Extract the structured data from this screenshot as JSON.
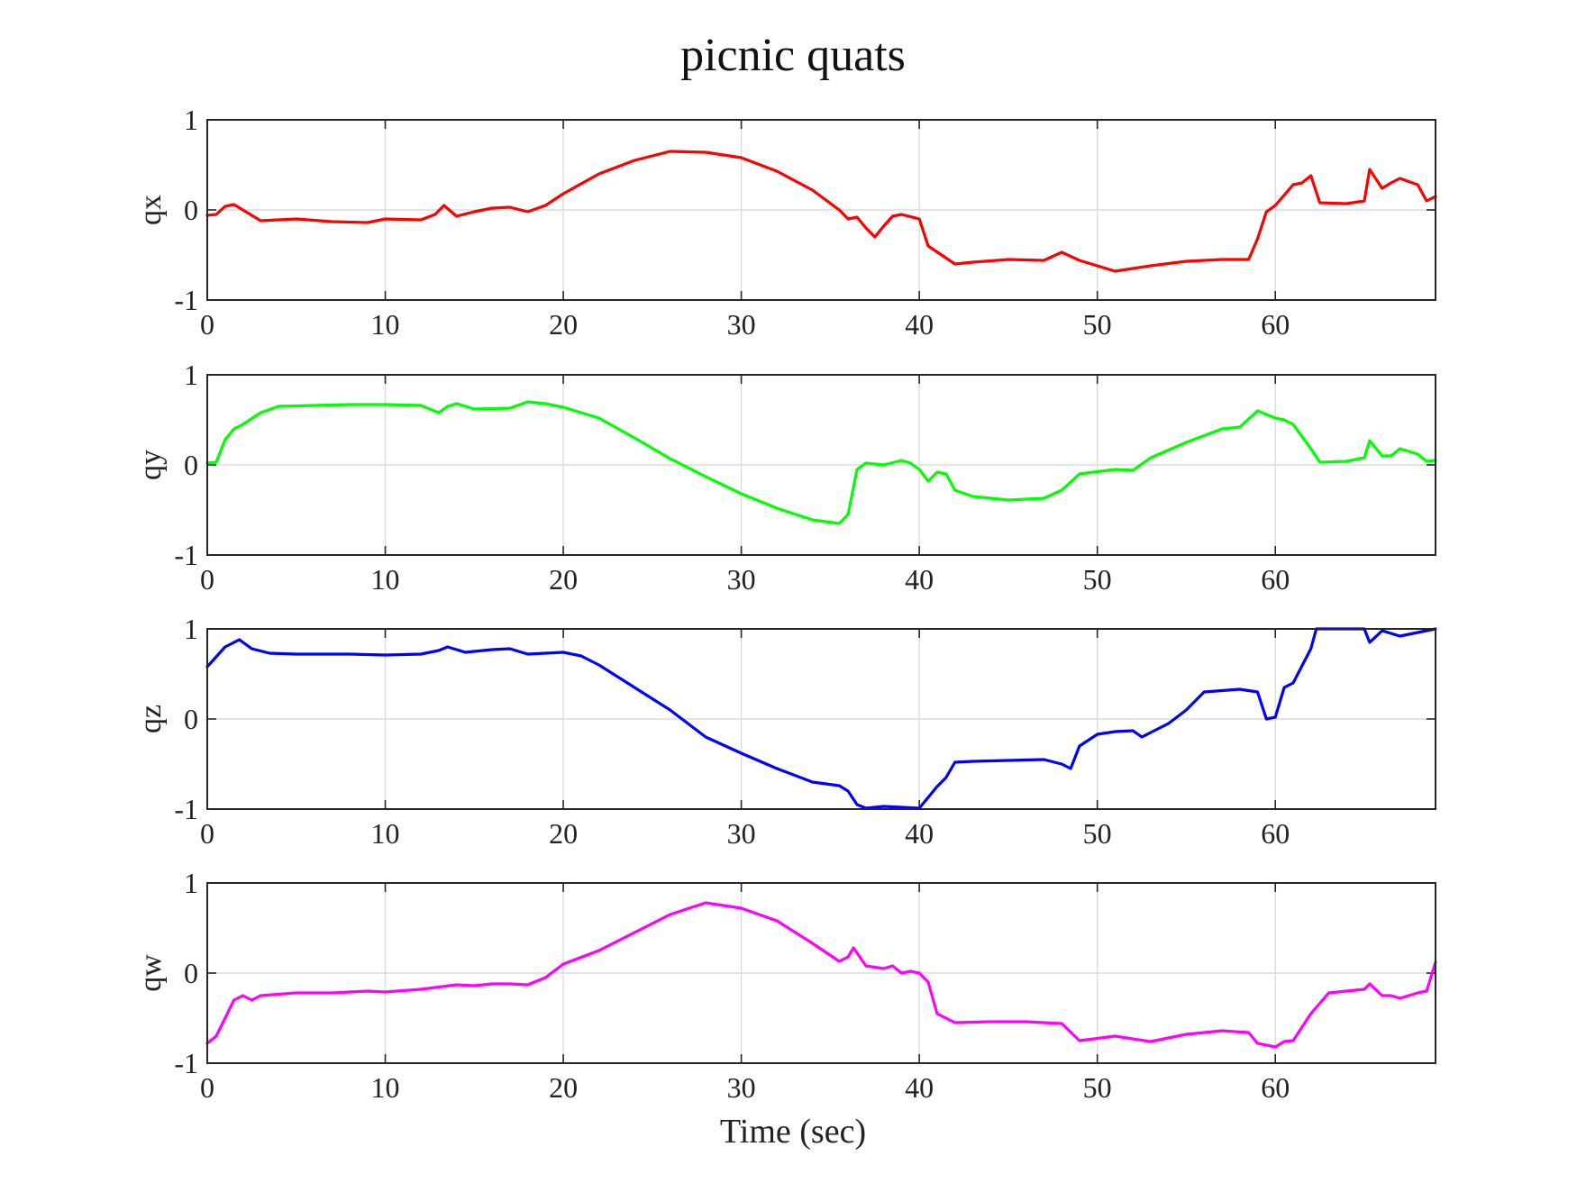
{
  "chart_data": {
    "title": "picnic quats",
    "xlabel": "Time (sec)",
    "type": "line",
    "grid": true,
    "xlim": [
      0,
      69
    ],
    "x_ticks": [
      0,
      10,
      20,
      30,
      40,
      50,
      60
    ],
    "subplots": [
      {
        "ylabel": "qx",
        "ylim": [
          -1,
          1
        ],
        "y_ticks": [
          -1,
          0,
          1
        ],
        "color": "#ff0000",
        "x": [
          0,
          0.5,
          1,
          1.5,
          2,
          3,
          5,
          7,
          9,
          10,
          12,
          12.8,
          13.3,
          14,
          15,
          16,
          17,
          18,
          19,
          20,
          22,
          24,
          26,
          28,
          30,
          32,
          34,
          35.5,
          36,
          36.5,
          37,
          37.5,
          38,
          38.5,
          39,
          40,
          40.5,
          42,
          43,
          45,
          47,
          48,
          49,
          51,
          53,
          55,
          57,
          58.5,
          59,
          59.5,
          60,
          61,
          61.5,
          62,
          62.5,
          64,
          65,
          65.3,
          66,
          66.5,
          67,
          68,
          68.5,
          69
        ],
        "y": [
          -0.06,
          -0.05,
          0.04,
          0.06,
          0.0,
          -0.12,
          -0.1,
          -0.13,
          -0.14,
          -0.1,
          -0.11,
          -0.05,
          0.05,
          -0.07,
          -0.02,
          0.02,
          0.03,
          -0.02,
          0.05,
          0.18,
          0.4,
          0.55,
          0.65,
          0.64,
          0.58,
          0.43,
          0.22,
          0.0,
          -0.1,
          -0.08,
          -0.2,
          -0.3,
          -0.18,
          -0.07,
          -0.05,
          -0.1,
          -0.4,
          -0.6,
          -0.58,
          -0.55,
          -0.56,
          -0.47,
          -0.56,
          -0.68,
          -0.62,
          -0.57,
          -0.55,
          -0.55,
          -0.32,
          -0.02,
          0.05,
          0.28,
          0.3,
          0.38,
          0.08,
          0.07,
          0.1,
          0.45,
          0.24,
          0.3,
          0.35,
          0.28,
          0.1,
          0.15
        ]
      },
      {
        "ylabel": "qy",
        "ylim": [
          -1,
          1
        ],
        "y_ticks": [
          -1,
          0,
          1
        ],
        "color": "#00ff00",
        "x": [
          0,
          0.5,
          1,
          1.5,
          2,
          3,
          4,
          6,
          8,
          10,
          12,
          13,
          13.5,
          14,
          15,
          17,
          18,
          19,
          20,
          22,
          24,
          26,
          28,
          30,
          32,
          34,
          35.5,
          36,
          36.5,
          37,
          38,
          39,
          39.5,
          40,
          40.5,
          41,
          41.5,
          42,
          43,
          45,
          47,
          48,
          49,
          51,
          52,
          53,
          55,
          57,
          58,
          59,
          60,
          60.5,
          61,
          62,
          62.5,
          64,
          65,
          65.3,
          66,
          66.5,
          67,
          68,
          68.5,
          69
        ],
        "y": [
          0.02,
          0.03,
          0.28,
          0.4,
          0.45,
          0.58,
          0.65,
          0.66,
          0.67,
          0.67,
          0.66,
          0.58,
          0.65,
          0.68,
          0.62,
          0.63,
          0.7,
          0.68,
          0.64,
          0.52,
          0.3,
          0.07,
          -0.13,
          -0.32,
          -0.48,
          -0.61,
          -0.65,
          -0.55,
          -0.05,
          0.02,
          0.0,
          0.05,
          0.02,
          -0.05,
          -0.18,
          -0.08,
          -0.1,
          -0.28,
          -0.35,
          -0.39,
          -0.37,
          -0.28,
          -0.1,
          -0.05,
          -0.06,
          0.08,
          0.25,
          0.4,
          0.42,
          0.6,
          0.52,
          0.5,
          0.45,
          0.18,
          0.03,
          0.04,
          0.08,
          0.27,
          0.1,
          0.1,
          0.18,
          0.12,
          0.04,
          0.05
        ]
      },
      {
        "ylabel": "qz",
        "ylim": [
          -1,
          1
        ],
        "y_ticks": [
          -1,
          0,
          1
        ],
        "color": "#0000ff",
        "x": [
          0,
          1,
          1.8,
          2.5,
          3.5,
          5,
          8,
          10,
          12,
          13,
          13.5,
          14.5,
          16,
          17,
          18,
          20,
          21,
          22,
          24,
          26,
          28,
          30,
          32,
          34,
          35.5,
          36,
          36.5,
          37,
          38,
          39,
          40,
          41,
          41.5,
          42,
          43,
          45,
          47,
          48,
          48.5,
          49,
          50,
          51,
          52,
          52.5,
          53,
          54,
          55,
          56,
          58,
          59,
          59.5,
          60,
          60.5,
          61,
          62,
          62.3,
          64,
          65,
          65.3,
          66,
          67,
          68,
          69
        ],
        "y": [
          0.58,
          0.8,
          0.88,
          0.78,
          0.73,
          0.72,
          0.72,
          0.71,
          0.72,
          0.76,
          0.8,
          0.74,
          0.77,
          0.78,
          0.72,
          0.74,
          0.7,
          0.6,
          0.35,
          0.1,
          -0.2,
          -0.38,
          -0.55,
          -0.7,
          -0.74,
          -0.8,
          -0.95,
          -0.99,
          -0.97,
          -0.98,
          -0.99,
          -0.75,
          -0.65,
          -0.48,
          -0.47,
          -0.46,
          -0.45,
          -0.5,
          -0.55,
          -0.3,
          -0.17,
          -0.14,
          -0.13,
          -0.2,
          -0.15,
          -0.05,
          0.1,
          0.3,
          0.33,
          0.3,
          0.0,
          0.02,
          0.35,
          0.4,
          0.78,
          1.0,
          1.0,
          1.0,
          0.85,
          0.98,
          0.92,
          0.96,
          1.0
        ]
      },
      {
        "ylabel": "qw",
        "ylim": [
          -1,
          1
        ],
        "y_ticks": [
          -1,
          0,
          1
        ],
        "color": "#ff00ff",
        "x": [
          0,
          0.5,
          1,
          1.5,
          2,
          2.5,
          3,
          5,
          7,
          9,
          10,
          12,
          14,
          15,
          16,
          17,
          18,
          19,
          20,
          22,
          24,
          26,
          28,
          30,
          32,
          34,
          35.5,
          36,
          36.3,
          37,
          38,
          38.5,
          39,
          39.5,
          40,
          40.5,
          41,
          41.5,
          42,
          44,
          46,
          48,
          49,
          51,
          53,
          55,
          57,
          58.5,
          59,
          60,
          60.5,
          61,
          62,
          63,
          64,
          65,
          65.3,
          66,
          66.5,
          67,
          68,
          68.5,
          69
        ],
        "y": [
          -0.78,
          -0.7,
          -0.5,
          -0.3,
          -0.25,
          -0.3,
          -0.25,
          -0.22,
          -0.22,
          -0.2,
          -0.21,
          -0.18,
          -0.13,
          -0.14,
          -0.12,
          -0.12,
          -0.13,
          -0.05,
          0.1,
          0.25,
          0.45,
          0.65,
          0.78,
          0.72,
          0.58,
          0.33,
          0.13,
          0.18,
          0.28,
          0.08,
          0.05,
          0.08,
          0.0,
          0.02,
          0.0,
          -0.1,
          -0.45,
          -0.5,
          -0.55,
          -0.54,
          -0.54,
          -0.56,
          -0.75,
          -0.7,
          -0.76,
          -0.68,
          -0.64,
          -0.66,
          -0.78,
          -0.82,
          -0.76,
          -0.75,
          -0.45,
          -0.22,
          -0.2,
          -0.18,
          -0.12,
          -0.25,
          -0.25,
          -0.28,
          -0.22,
          -0.2,
          0.12
        ]
      }
    ]
  }
}
